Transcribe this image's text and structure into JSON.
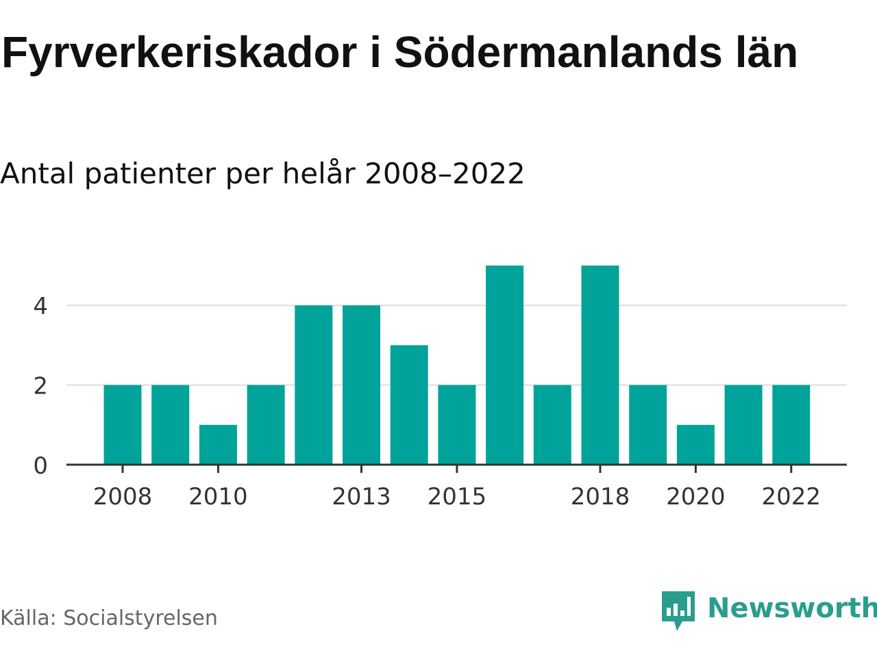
{
  "title": "Fyrverkeriskador i Södermanlands län",
  "subtitle": "Antal patienter per helår 2008–2022",
  "source": "Källa: Socialstyrelsen",
  "brand": {
    "name": "Newsworthy",
    "icon": "newsworthy-logo-icon",
    "color": "#2a9d8f"
  },
  "colors": {
    "bar": "#00a39a",
    "grid": "#dddddd",
    "axis": "#333333"
  },
  "chart_data": {
    "type": "bar",
    "categories": [
      "2008",
      "2009",
      "2010",
      "2011",
      "2012",
      "2013",
      "2014",
      "2015",
      "2016",
      "2017",
      "2018",
      "2019",
      "2020",
      "2021",
      "2022"
    ],
    "values": [
      2,
      2,
      1,
      2,
      4,
      4,
      3,
      2,
      5,
      2,
      5,
      2,
      1,
      2,
      2
    ],
    "x_tick_labels": [
      "2008",
      "2010",
      "2013",
      "2015",
      "2018",
      "2020",
      "2022"
    ],
    "y_ticks": [
      0,
      2,
      4
    ],
    "ylim": [
      0,
      5
    ],
    "grid": true,
    "legend": "none"
  }
}
